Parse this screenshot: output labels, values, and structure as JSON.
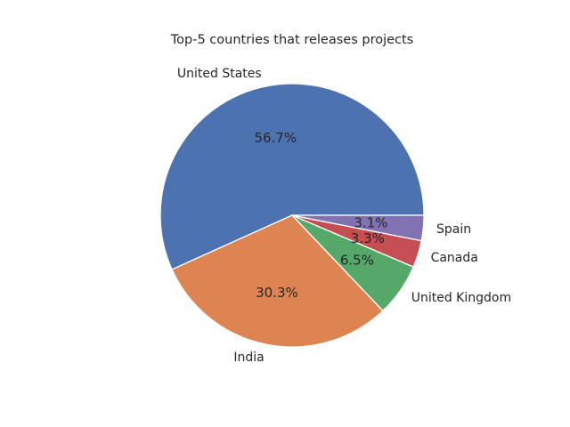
{
  "chart_data": {
    "type": "pie",
    "title": "Top-5 countries that releases projects",
    "categories": [
      "United States",
      "India",
      "United Kingdom",
      "Canada",
      "Spain"
    ],
    "values": [
      56.7,
      30.3,
      6.5,
      3.3,
      3.1
    ],
    "percent_labels": [
      "56.7%",
      "30.3%",
      "6.5%",
      "3.3%",
      "3.1%"
    ],
    "colors": [
      "#4c72b0",
      "#dd8452",
      "#55a868",
      "#c44e52",
      "#8172b3"
    ],
    "start_angle_deg": 0,
    "direction": "counterclockwise",
    "legend": "none"
  }
}
